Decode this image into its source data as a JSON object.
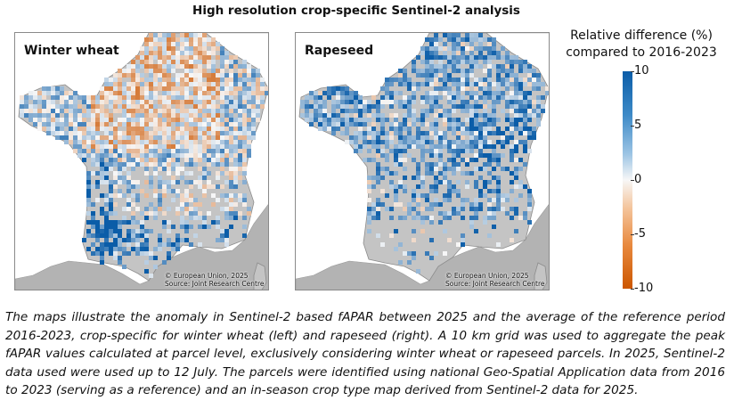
{
  "title": "High resolution crop-specific Sentinel-2 analysis",
  "maps": [
    {
      "label": "Winter wheat",
      "credit_line1": "© European Union, 2025",
      "credit_line2": "Source: Joint Research Centre"
    },
    {
      "label": "Rapeseed",
      "credit_line1": "© European Union, 2025",
      "credit_line2": "Source: Joint Research Centre"
    }
  ],
  "legend": {
    "title_line1": "Relative difference (%)",
    "title_line2": "compared to 2016-2023",
    "ticks": [
      "10",
      "5",
      "0",
      "-5",
      "-10"
    ],
    "min": -10,
    "max": 10,
    "colors": {
      "high": "#0b5da8",
      "mid": "#f7f7f7",
      "low": "#cc5600",
      "land": "#b3b3b3",
      "sea": "#ffffff"
    }
  },
  "caption": "The maps illustrate the anomaly in Sentinel-2 based fAPAR between 2025 and the average of the reference period 2016-2023, crop-specific for winter wheat (left) and rapeseed (right). A 10 km grid was used to aggregate the peak fAPAR values calculated at parcel level, exclusively considering winter wheat or rapeseed parcels. In 2025, Sentinel-2 data used were used up to 12 July. The parcels were identified using national Geo-Spatial Application data from 2016 to 2023 (serving as a reference) and an in-season crop type map derived from Sentinel-2 data for 2025."
}
